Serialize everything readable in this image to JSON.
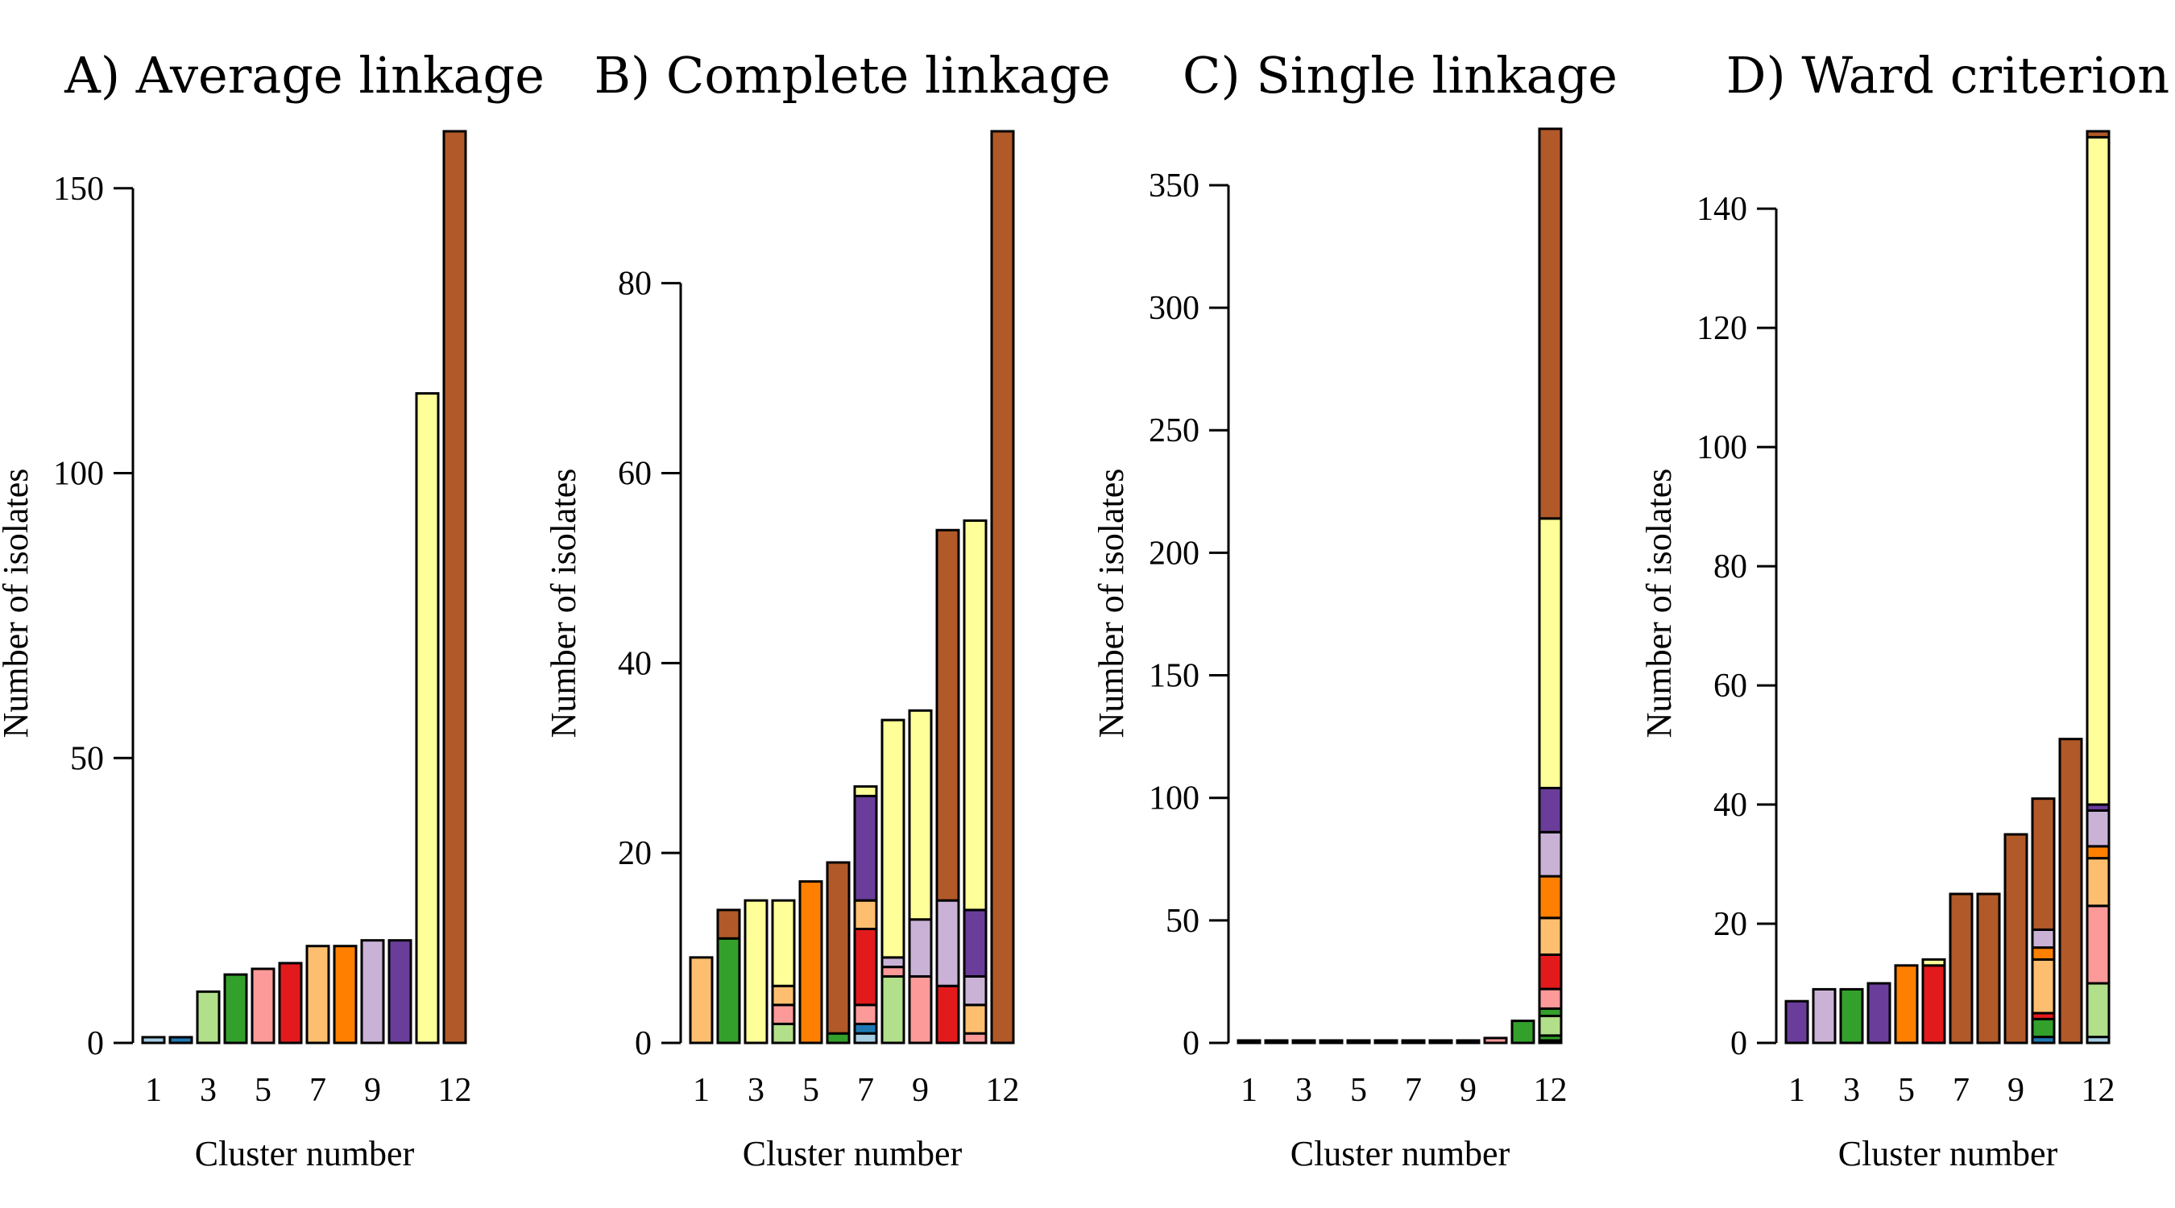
{
  "colors": {
    "lightblue": "#a6cee3",
    "blue": "#1f78b4",
    "lightgreen": "#b2df8a",
    "green": "#33a02c",
    "pink": "#fb9a99",
    "red": "#e31a1c",
    "lightorange": "#fdbf6f",
    "orange": "#ff7f00",
    "lavender": "#cab2d6",
    "purple": "#6a3d9a",
    "yellow": "#ffff99",
    "brown": "#b15928"
  },
  "chart_data": [
    {
      "type": "bar",
      "title": "A) Average linkage",
      "xlabel": "Cluster number",
      "ylabel": "Number of isolates",
      "ylim": [
        0,
        160
      ],
      "yticks": [
        0,
        50,
        100,
        150
      ],
      "categories": [
        "1",
        "2",
        "3",
        "4",
        "5",
        "6",
        "7",
        "8",
        "9",
        "10",
        "11",
        "12"
      ],
      "xtick_labels": [
        "1",
        "3",
        "5",
        "7",
        "9",
        "12"
      ],
      "stacks": [
        [
          [
            "lightblue",
            1
          ]
        ],
        [
          [
            "blue",
            1
          ]
        ],
        [
          [
            "lightgreen",
            9
          ]
        ],
        [
          [
            "green",
            12
          ]
        ],
        [
          [
            "pink",
            13
          ]
        ],
        [
          [
            "red",
            14
          ]
        ],
        [
          [
            "lightorange",
            17
          ]
        ],
        [
          [
            "orange",
            17
          ]
        ],
        [
          [
            "lavender",
            18
          ]
        ],
        [
          [
            "purple",
            18
          ]
        ],
        [
          [
            "yellow",
            114
          ]
        ],
        [
          [
            "brown",
            160
          ]
        ]
      ]
    },
    {
      "type": "bar",
      "title": "B) Complete linkage",
      "xlabel": "Cluster number",
      "ylabel": "Number of isolates",
      "ylim": [
        0,
        96
      ],
      "yticks": [
        0,
        20,
        40,
        60,
        80
      ],
      "categories": [
        "1",
        "2",
        "3",
        "4",
        "5",
        "6",
        "7",
        "8",
        "9",
        "10",
        "11",
        "12"
      ],
      "xtick_labels": [
        "1",
        "3",
        "5",
        "7",
        "9",
        "12"
      ],
      "stacks": [
        [
          [
            "lightorange",
            9
          ]
        ],
        [
          [
            "green",
            11
          ],
          [
            "brown",
            3
          ]
        ],
        [
          [
            "yellow",
            15
          ]
        ],
        [
          [
            "lightgreen",
            2
          ],
          [
            "pink",
            2
          ],
          [
            "lightorange",
            2
          ],
          [
            "yellow",
            9
          ]
        ],
        [
          [
            "orange",
            17
          ]
        ],
        [
          [
            "green",
            1
          ],
          [
            "brown",
            18
          ]
        ],
        [
          [
            "lightblue",
            1
          ],
          [
            "blue",
            1
          ],
          [
            "pink",
            2
          ],
          [
            "red",
            8
          ],
          [
            "lightorange",
            3
          ],
          [
            "purple",
            11
          ],
          [
            "yellow",
            1
          ]
        ],
        [
          [
            "lightgreen",
            7
          ],
          [
            "pink",
            1
          ],
          [
            "lavender",
            1
          ],
          [
            "yellow",
            25
          ]
        ],
        [
          [
            "pink",
            7
          ],
          [
            "lavender",
            6
          ],
          [
            "yellow",
            22
          ]
        ],
        [
          [
            "red",
            6
          ],
          [
            "lavender",
            9
          ],
          [
            "brown",
            39
          ]
        ],
        [
          [
            "pink",
            1
          ],
          [
            "lightorange",
            3
          ],
          [
            "lavender",
            3
          ],
          [
            "purple",
            7
          ],
          [
            "yellow",
            41
          ]
        ],
        [
          [
            "brown",
            96
          ]
        ]
      ]
    },
    {
      "type": "bar",
      "title": "C) Single linkage",
      "xlabel": "Cluster number",
      "ylabel": "Number of isolates",
      "ylim": [
        0,
        372
      ],
      "yticks": [
        0,
        50,
        100,
        150,
        200,
        250,
        300,
        350
      ],
      "categories": [
        "1",
        "2",
        "3",
        "4",
        "5",
        "6",
        "7",
        "8",
        "9",
        "10",
        "11",
        "12"
      ],
      "xtick_labels": [
        "1",
        "3",
        "5",
        "7",
        "9",
        "12"
      ],
      "stacks": [
        [
          [
            "purple",
            1
          ]
        ],
        [
          [
            "purple",
            1
          ]
        ],
        [
          [
            "purple",
            1
          ]
        ],
        [
          [
            "purple",
            1
          ]
        ],
        [
          [
            "purple",
            1
          ]
        ],
        [
          [
            "purple",
            1
          ]
        ],
        [
          [
            "purple",
            1
          ]
        ],
        [
          [
            "purple",
            1
          ]
        ],
        [
          [
            "purple",
            1
          ]
        ],
        [
          [
            "pink",
            2
          ]
        ],
        [
          [
            "green",
            9
          ]
        ],
        [
          [
            "blue",
            1
          ],
          [
            "green",
            2
          ],
          [
            "lightgreen",
            8
          ],
          [
            "green",
            3
          ],
          [
            "pink",
            8
          ],
          [
            "red",
            14
          ],
          [
            "lightorange",
            15
          ],
          [
            "orange",
            17
          ],
          [
            "lavender",
            18
          ],
          [
            "purple",
            18
          ],
          [
            "yellow",
            110
          ],
          [
            "brown",
            159
          ]
        ]
      ]
    },
    {
      "type": "bar",
      "title": "D) Ward criterion",
      "xlabel": "Cluster number",
      "ylabel": "Number of isolates",
      "ylim": [
        0,
        153
      ],
      "yticks": [
        0,
        20,
        40,
        60,
        80,
        100,
        120,
        140
      ],
      "categories": [
        "1",
        "2",
        "3",
        "4",
        "5",
        "6",
        "7",
        "8",
        "9",
        "10",
        "11",
        "12"
      ],
      "xtick_labels": [
        "1",
        "3",
        "5",
        "7",
        "9",
        "12"
      ],
      "stacks": [
        [
          [
            "purple",
            7
          ]
        ],
        [
          [
            "lavender",
            9
          ]
        ],
        [
          [
            "green",
            9
          ]
        ],
        [
          [
            "purple",
            10
          ]
        ],
        [
          [
            "orange",
            13
          ]
        ],
        [
          [
            "red",
            13
          ],
          [
            "yellow",
            1
          ]
        ],
        [
          [
            "brown",
            25
          ]
        ],
        [
          [
            "brown",
            25
          ]
        ],
        [
          [
            "brown",
            35
          ]
        ],
        [
          [
            "blue",
            1
          ],
          [
            "green",
            3
          ],
          [
            "red",
            1
          ],
          [
            "lightorange",
            9
          ],
          [
            "orange",
            2
          ],
          [
            "lavender",
            3
          ],
          [
            "brown",
            22
          ]
        ],
        [
          [
            "brown",
            51
          ]
        ],
        [
          [
            "lightblue",
            1
          ],
          [
            "lightgreen",
            9
          ],
          [
            "pink",
            13
          ],
          [
            "lightorange",
            8
          ],
          [
            "orange",
            2
          ],
          [
            "lavender",
            6
          ],
          [
            "purple",
            1
          ],
          [
            "yellow",
            112
          ],
          [
            "brown",
            1
          ]
        ]
      ]
    }
  ]
}
